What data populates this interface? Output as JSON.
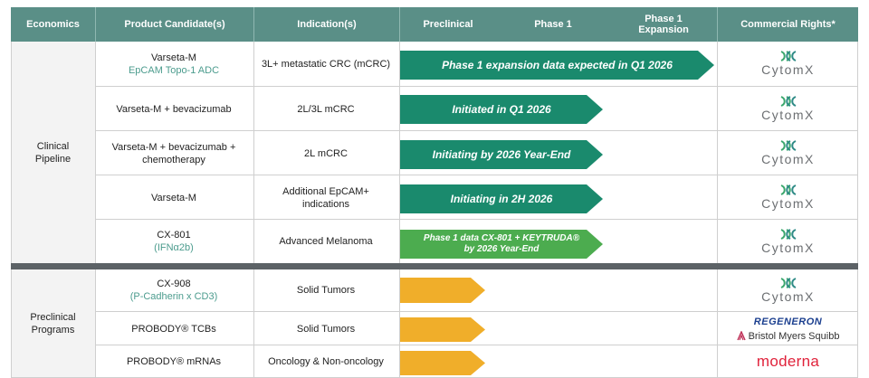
{
  "header": {
    "economics": "Economics",
    "product": "Product Candidate(s)",
    "indication": "Indication(s)",
    "preclinical": "Preclinical",
    "phase1": "Phase 1",
    "phase1_expansion_line1": "Phase 1",
    "phase1_expansion_line2": "Expansion",
    "commercial_rights": "Commercial Rights*"
  },
  "sections": {
    "clinical_line1": "Clinical",
    "clinical_line2": "Pipeline",
    "preclinical_line1": "Preclinical",
    "preclinical_line2": "Programs"
  },
  "rows": [
    {
      "product_line1": "Varseta-M",
      "product_line2": "EpCAM Topo-1 ADC",
      "indication_line1": "3L+ metastatic CRC (mCRC)",
      "indication_line2": "",
      "status": "Phase 1 expansion data expected in Q1 2026",
      "status_line2": "",
      "rights": "CytomX"
    },
    {
      "product_line1": "Varseta-M + bevacizumab",
      "product_line2": "",
      "indication_line1": "2L/3L mCRC",
      "indication_line2": "",
      "status": "Initiated in Q1 2026",
      "status_line2": "",
      "rights": "CytomX"
    },
    {
      "product_line1": "Varseta-M + bevacizumab +",
      "product_line2": "chemotherapy",
      "indication_line1": "2L mCRC",
      "indication_line2": "",
      "status": "Initiating by 2026 Year-End",
      "status_line2": "",
      "rights": "CytomX"
    },
    {
      "product_line1": "Varseta-M",
      "product_line2": "",
      "indication_line1": "Additional EpCAM+",
      "indication_line2": "indications",
      "status": "Initiating in 2H 2026",
      "status_line2": "",
      "rights": "CytomX"
    },
    {
      "product_line1": "CX-801",
      "product_line2": "(IFNα2b)",
      "indication_line1": "Advanced Melanoma",
      "indication_line2": "",
      "status": "Phase 1 data CX-801 + KEYTRUDA®",
      "status_line2": "by 2026 Year-End",
      "rights": "CytomX"
    },
    {
      "product_line1": "CX-908",
      "product_line2": "(P-Cadherin x CD3)",
      "indication_line1": "Solid Tumors",
      "indication_line2": "",
      "status": "",
      "status_line2": "",
      "rights": "CytomX"
    },
    {
      "product_line1": "PROBODY® TCBs",
      "product_line2": "",
      "indication_line1": "Solid Tumors",
      "indication_line2": "",
      "status": "",
      "status_line2": "",
      "rights_line1": "REGENERON",
      "rights_line2": "Bristol Myers Squibb"
    },
    {
      "product_line1": "PROBODY® mRNAs",
      "product_line2": "",
      "indication_line1": "Oncology & Non-oncology",
      "indication_line2": "",
      "status": "",
      "status_line2": "",
      "rights": "moderna"
    }
  ],
  "colors": {
    "header_bg": "#5a8f87",
    "arrow_dark_green": "#1a8a6d",
    "arrow_light_green": "#4cac4f",
    "arrow_orange": "#f0ae2a",
    "teal_text": "#4c9c8e",
    "divider_bar": "#5c6266"
  },
  "icons": {
    "cytomx_logo": "cytomx-logo-icon",
    "bms_logo": "bms-logo-icon"
  }
}
